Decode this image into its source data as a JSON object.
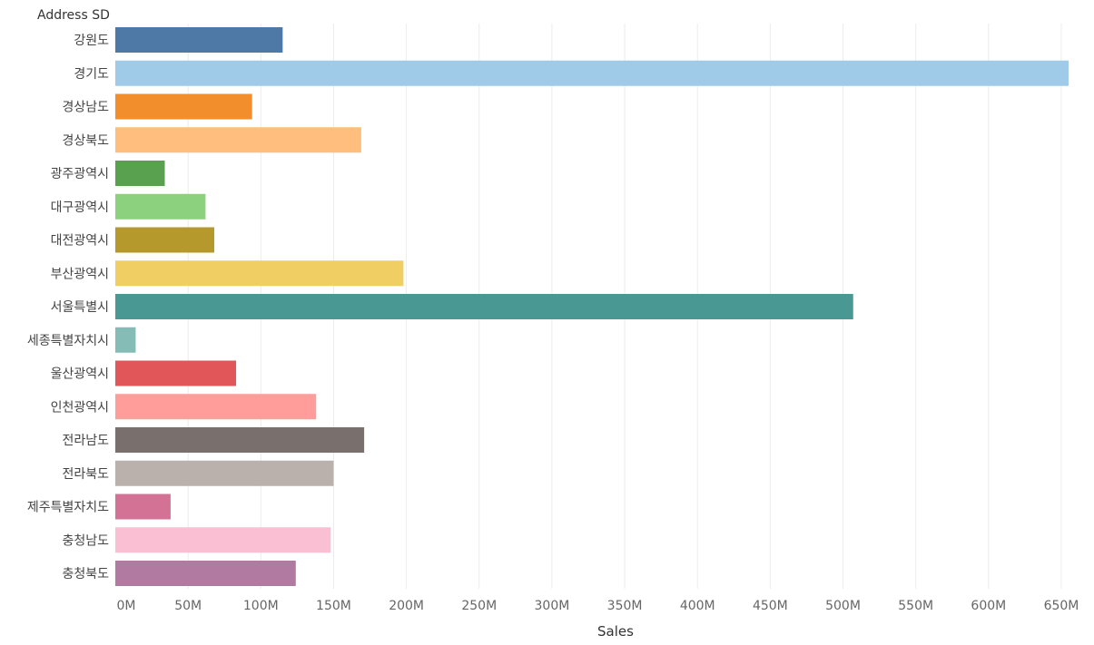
{
  "chart_data": {
    "type": "bar",
    "orientation": "horizontal",
    "title": "",
    "row_header": "Address SD",
    "xlabel": "Sales",
    "ylabel": "",
    "xlim": [
      0,
      670
    ],
    "unit_suffix": "M",
    "xticks": [
      0,
      50,
      100,
      150,
      200,
      250,
      300,
      350,
      400,
      450,
      500,
      550,
      600,
      650
    ],
    "xtick_labels": [
      "0M",
      "50M",
      "100M",
      "150M",
      "200M",
      "250M",
      "300M",
      "350M",
      "400M",
      "450M",
      "500M",
      "550M",
      "600M",
      "650M"
    ],
    "grid": true,
    "legend": "none",
    "categories": [
      "강원도",
      "경기도",
      "경상남도",
      "경상북도",
      "광주광역시",
      "대구광역시",
      "대전광역시",
      "부산광역시",
      "서울특별시",
      "세종특별자치시",
      "울산광역시",
      "인천광역시",
      "전라남도",
      "전라북도",
      "제주특별자치도",
      "충청남도",
      "충청북도"
    ],
    "values": [
      115,
      655,
      94,
      169,
      34,
      62,
      68,
      198,
      507,
      14,
      83,
      138,
      171,
      150,
      38,
      148,
      124
    ],
    "colors": [
      "#4e79a7",
      "#a0cbe8",
      "#f28e2b",
      "#ffbe7d",
      "#59a14f",
      "#8cd17d",
      "#b6992d",
      "#f1ce63",
      "#499894",
      "#86bcb6",
      "#e15759",
      "#ff9d9a",
      "#79706e",
      "#bab0ac",
      "#d37295",
      "#fabfd2",
      "#b07aa1"
    ]
  }
}
